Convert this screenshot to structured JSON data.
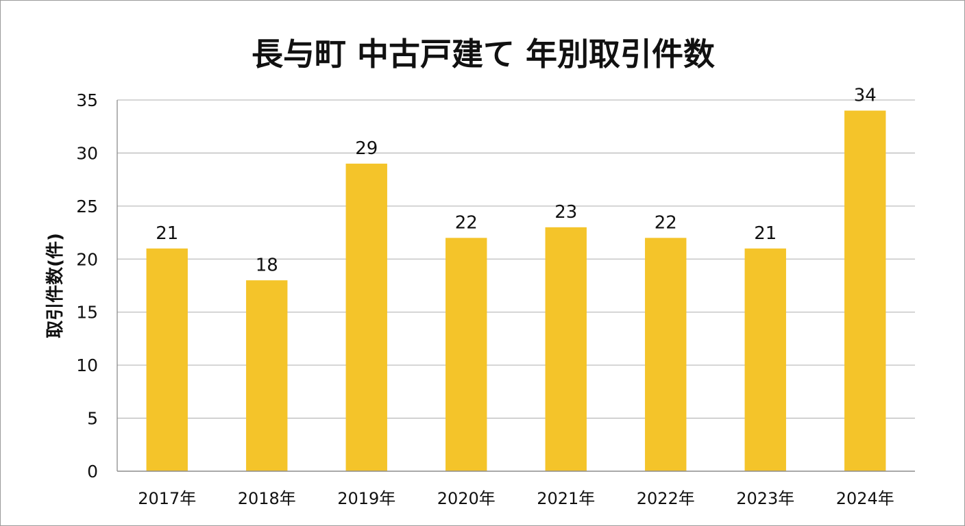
{
  "chart_data": {
    "type": "bar",
    "title": "長与町 中古戸建て 年別取引件数",
    "xlabel": "",
    "ylabel": "取引件数(件)",
    "categories": [
      "2017年",
      "2018年",
      "2019年",
      "2020年",
      "2021年",
      "2022年",
      "2023年",
      "2024年"
    ],
    "values": [
      21,
      18,
      29,
      22,
      23,
      22,
      21,
      34
    ],
    "ylim": [
      0,
      35
    ],
    "yticks": [
      0,
      5,
      10,
      15,
      20,
      25,
      30,
      35
    ],
    "data_labels": true,
    "grid": "horizontal",
    "legend": "none",
    "colors": {
      "bar": "#f4c42a",
      "grid": "#bdbdbd",
      "axis": "#8c8c8c",
      "text": "#111111"
    }
  }
}
